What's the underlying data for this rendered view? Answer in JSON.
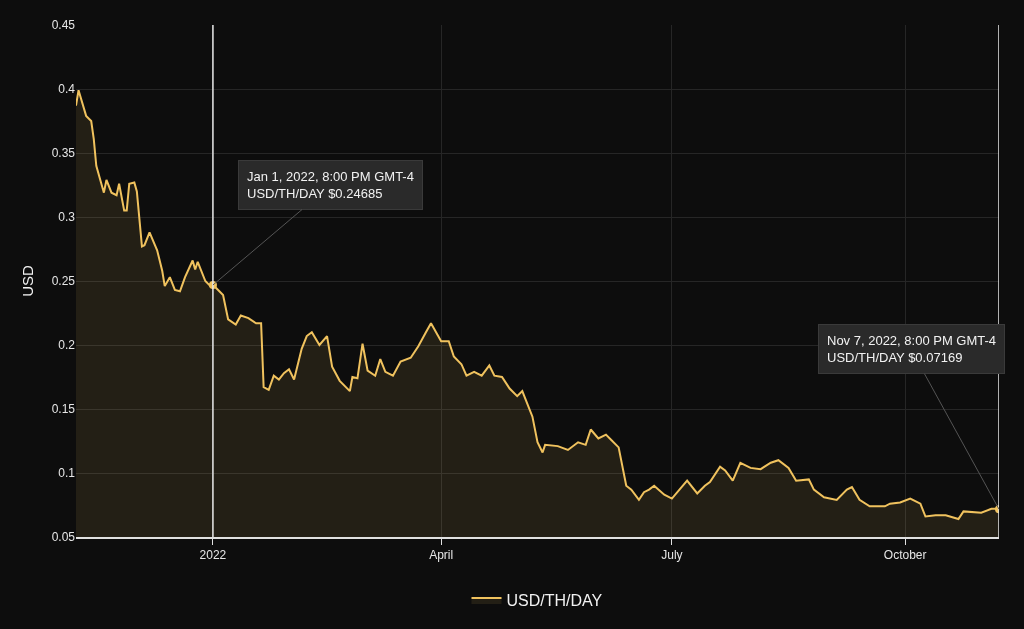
{
  "chart_data": {
    "type": "area",
    "ylabel": "USD",
    "x": [
      "2021-11-08",
      "2021-11-09",
      "2021-11-12",
      "2021-11-14",
      "2021-11-15",
      "2021-11-16",
      "2021-11-19",
      "2021-11-20",
      "2021-11-22",
      "2021-11-24",
      "2021-11-25",
      "2021-11-27",
      "2021-11-28",
      "2021-11-29",
      "2021-12-01",
      "2021-12-02",
      "2021-12-04",
      "2021-12-05",
      "2021-12-07",
      "2021-12-10",
      "2021-12-12",
      "2021-12-13",
      "2021-12-15",
      "2021-12-17",
      "2021-12-19",
      "2021-12-21",
      "2021-12-24",
      "2021-12-25",
      "2021-12-26",
      "2021-12-29",
      "2021-12-31",
      "2022-01-01",
      "2022-01-05",
      "2022-01-07",
      "2022-01-10",
      "2022-01-12",
      "2022-01-15",
      "2022-01-18",
      "2022-01-20",
      "2022-01-21",
      "2022-01-23",
      "2022-01-25",
      "2022-01-27",
      "2022-01-29",
      "2022-01-31",
      "2022-02-02",
      "2022-02-05",
      "2022-02-07",
      "2022-02-09",
      "2022-02-12",
      "2022-02-15",
      "2022-02-17",
      "2022-02-20",
      "2022-02-24",
      "2022-02-25",
      "2022-02-27",
      "2022-03-01",
      "2022-03-03",
      "2022-03-06",
      "2022-03-08",
      "2022-03-10",
      "2022-03-13",
      "2022-03-16",
      "2022-03-20",
      "2022-03-23",
      "2022-03-26",
      "2022-03-28",
      "2022-03-30",
      "2022-04-01",
      "2022-04-04",
      "2022-04-06",
      "2022-04-09",
      "2022-04-11",
      "2022-04-14",
      "2022-04-17",
      "2022-04-20",
      "2022-04-22",
      "2022-04-25",
      "2022-04-28",
      "2022-05-01",
      "2022-05-03",
      "2022-05-07",
      "2022-05-09",
      "2022-05-11",
      "2022-05-12",
      "2022-05-17",
      "2022-05-21",
      "2022-05-25",
      "2022-05-28",
      "2022-05-30",
      "2022-06-02",
      "2022-06-05",
      "2022-06-07",
      "2022-06-10",
      "2022-06-13",
      "2022-06-15",
      "2022-06-18",
      "2022-06-20",
      "2022-06-22",
      "2022-06-24",
      "2022-06-28",
      "2022-07-01",
      "2022-07-07",
      "2022-07-11",
      "2022-07-14",
      "2022-07-16",
      "2022-07-20",
      "2022-07-22",
      "2022-07-25",
      "2022-07-28",
      "2022-08-01",
      "2022-08-05",
      "2022-08-09",
      "2022-08-12",
      "2022-08-16",
      "2022-08-19",
      "2022-08-24",
      "2022-08-26",
      "2022-08-30",
      "2022-09-04",
      "2022-09-08",
      "2022-09-10",
      "2022-09-13",
      "2022-09-17",
      "2022-09-23",
      "2022-09-25",
      "2022-09-29",
      "2022-10-03",
      "2022-10-07",
      "2022-10-09",
      "2022-10-13",
      "2022-10-17",
      "2022-10-22",
      "2022-10-24",
      "2022-10-31",
      "2022-11-04",
      "2022-11-07"
    ],
    "series": [
      {
        "name": "USD/TH/DAY",
        "color": "#f0c25e",
        "values": [
          0.387,
          0.399,
          0.379,
          0.375,
          0.361,
          0.34,
          0.319,
          0.329,
          0.319,
          0.317,
          0.326,
          0.305,
          0.305,
          0.326,
          0.327,
          0.32,
          0.277,
          0.278,
          0.288,
          0.274,
          0.258,
          0.246,
          0.253,
          0.243,
          0.242,
          0.253,
          0.266,
          0.259,
          0.265,
          0.25,
          0.246,
          0.247,
          0.239,
          0.22,
          0.216,
          0.223,
          0.221,
          0.217,
          0.217,
          0.167,
          0.165,
          0.176,
          0.173,
          0.178,
          0.181,
          0.173,
          0.197,
          0.207,
          0.21,
          0.2,
          0.207,
          0.183,
          0.172,
          0.164,
          0.175,
          0.174,
          0.201,
          0.18,
          0.176,
          0.189,
          0.179,
          0.176,
          0.187,
          0.19,
          0.199,
          0.21,
          0.217,
          0.21,
          0.203,
          0.203,
          0.191,
          0.185,
          0.176,
          0.179,
          0.176,
          0.184,
          0.176,
          0.175,
          0.166,
          0.16,
          0.164,
          0.144,
          0.124,
          0.116,
          0.122,
          0.121,
          0.118,
          0.124,
          0.122,
          0.134,
          0.127,
          0.13,
          0.126,
          0.12,
          0.09,
          0.087,
          0.079,
          0.085,
          0.087,
          0.09,
          0.083,
          0.08,
          0.094,
          0.084,
          0.09,
          0.093,
          0.105,
          0.102,
          0.094,
          0.108,
          0.104,
          0.103,
          0.108,
          0.11,
          0.104,
          0.094,
          0.095,
          0.087,
          0.081,
          0.079,
          0.087,
          0.089,
          0.079,
          0.074,
          0.074,
          0.076,
          0.077,
          0.08,
          0.076,
          0.066,
          0.067,
          0.067,
          0.064,
          0.07,
          0.069,
          0.072,
          0.072
        ]
      }
    ],
    "xlim": [
      "2021-11-08",
      "2022-11-07"
    ],
    "xticks": [
      {
        "value": "2022-01-01",
        "label": "2022"
      },
      {
        "value": "2022-04-01",
        "label": "April"
      },
      {
        "value": "2022-07-01",
        "label": "July"
      },
      {
        "value": "2022-10-01",
        "label": "October"
      }
    ],
    "ylim": [
      0.05,
      0.45
    ],
    "yticks": [
      0.05,
      0.1,
      0.15,
      0.2,
      0.25,
      0.3,
      0.35,
      0.4,
      0.45
    ],
    "grid": true,
    "legend": "bottom",
    "ref_lines": [
      {
        "axis": "x",
        "value": "2022-01-01",
        "label": null,
        "color": "#e8e8e8"
      },
      {
        "axis": "x",
        "value": "2022-11-07",
        "label": null,
        "color": "#e8e8e8"
      }
    ],
    "annotations": [
      {
        "text": "Jan 1, 2022, 8:00 PM GMT-4\nUSD/TH/DAY $0.24685",
        "x": "2022-01-01",
        "y": 0.24685
      },
      {
        "text": "Nov 7, 2022, 8:00 PM GMT-4\nUSD/TH/DAY $0.07169",
        "x": "2022-11-07",
        "y": 0.07169
      }
    ]
  }
}
